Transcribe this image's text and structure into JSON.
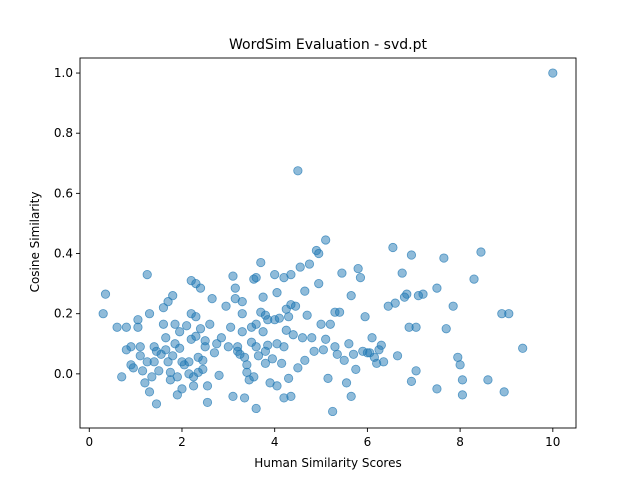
{
  "chart_data": {
    "type": "scatter",
    "title": "WordSim Evaluation - svd.pt",
    "xlabel": "Human Similarity Scores",
    "ylabel": "Cosine Similarity",
    "xlim": [
      -0.2,
      10.5
    ],
    "ylim": [
      -0.18,
      1.05
    ],
    "xticks": [
      0,
      2,
      4,
      6,
      8,
      10
    ],
    "yticks": [
      0.0,
      0.2,
      0.4,
      0.6,
      0.8,
      1.0
    ],
    "xtick_labels": [
      "0",
      "2",
      "4",
      "6",
      "8",
      "10"
    ],
    "ytick_labels": [
      "0.0",
      "0.2",
      "0.4",
      "0.6",
      "0.8",
      "1.0"
    ],
    "grid": false,
    "legend": "none",
    "marker_color": "#1f77b4",
    "marker_alpha": 0.5,
    "points": [
      [
        10.0,
        1.0
      ],
      [
        4.5,
        0.675
      ],
      [
        0.35,
        0.265
      ],
      [
        0.3,
        0.2
      ],
      [
        0.6,
        0.155
      ],
      [
        0.7,
        -0.01
      ],
      [
        0.8,
        0.08
      ],
      [
        0.8,
        0.155
      ],
      [
        0.9,
        0.09
      ],
      [
        0.9,
        0.03
      ],
      [
        0.95,
        0.02
      ],
      [
        1.05,
        0.155
      ],
      [
        1.05,
        0.18
      ],
      [
        1.1,
        0.06
      ],
      [
        1.1,
        0.09
      ],
      [
        1.15,
        0.01
      ],
      [
        1.2,
        -0.03
      ],
      [
        1.25,
        0.33
      ],
      [
        1.25,
        0.04
      ],
      [
        1.3,
        0.2
      ],
      [
        1.3,
        -0.06
      ],
      [
        1.35,
        -0.01
      ],
      [
        1.4,
        0.04
      ],
      [
        1.4,
        0.09
      ],
      [
        1.45,
        0.075
      ],
      [
        1.45,
        -0.1
      ],
      [
        1.5,
        0.01
      ],
      [
        1.55,
        0.065
      ],
      [
        1.6,
        0.165
      ],
      [
        1.6,
        0.22
      ],
      [
        1.65,
        0.12
      ],
      [
        1.65,
        0.08
      ],
      [
        1.7,
        0.24
      ],
      [
        1.7,
        0.04
      ],
      [
        1.75,
        0.005
      ],
      [
        1.75,
        -0.02
      ],
      [
        1.8,
        0.26
      ],
      [
        1.8,
        0.06
      ],
      [
        1.85,
        0.165
      ],
      [
        1.85,
        0.1
      ],
      [
        1.9,
        -0.07
      ],
      [
        1.9,
        -0.01
      ],
      [
        1.95,
        0.14
      ],
      [
        1.95,
        0.085
      ],
      [
        2.0,
        0.04
      ],
      [
        2.0,
        -0.05
      ],
      [
        2.05,
        0.03
      ],
      [
        2.1,
        0.16
      ],
      [
        2.15,
        0.04
      ],
      [
        2.15,
        0.0
      ],
      [
        2.2,
        0.31
      ],
      [
        2.2,
        0.2
      ],
      [
        2.2,
        0.115
      ],
      [
        2.25,
        -0.04
      ],
      [
        2.25,
        -0.01
      ],
      [
        2.3,
        0.3
      ],
      [
        2.3,
        0.19
      ],
      [
        2.3,
        0.125
      ],
      [
        2.35,
        0.055
      ],
      [
        2.35,
        0.005
      ],
      [
        2.4,
        0.285
      ],
      [
        2.4,
        0.15
      ],
      [
        2.45,
        0.045
      ],
      [
        2.45,
        0.015
      ],
      [
        2.5,
        0.11
      ],
      [
        2.5,
        0.09
      ],
      [
        2.55,
        -0.04
      ],
      [
        2.55,
        -0.095
      ],
      [
        2.6,
        0.165
      ],
      [
        2.65,
        0.25
      ],
      [
        2.7,
        0.07
      ],
      [
        2.75,
        0.1
      ],
      [
        2.8,
        -0.005
      ],
      [
        2.85,
        0.12
      ],
      [
        2.95,
        0.225
      ],
      [
        3.0,
        0.09
      ],
      [
        3.05,
        0.155
      ],
      [
        3.1,
        0.325
      ],
      [
        3.1,
        -0.075
      ],
      [
        3.15,
        0.285
      ],
      [
        3.15,
        0.25
      ],
      [
        3.2,
        0.075
      ],
      [
        3.2,
        0.09
      ],
      [
        3.25,
        0.065
      ],
      [
        3.3,
        0.2
      ],
      [
        3.3,
        0.24
      ],
      [
        3.3,
        0.14
      ],
      [
        3.35,
        -0.08
      ],
      [
        3.35,
        0.055
      ],
      [
        3.4,
        0.03
      ],
      [
        3.4,
        0.005
      ],
      [
        3.45,
        -0.02
      ],
      [
        3.5,
        0.155
      ],
      [
        3.5,
        0.105
      ],
      [
        3.55,
        0.315
      ],
      [
        3.55,
        -0.01
      ],
      [
        3.6,
        0.32
      ],
      [
        3.6,
        0.165
      ],
      [
        3.6,
        0.09
      ],
      [
        3.6,
        -0.115
      ],
      [
        3.65,
        0.06
      ],
      [
        3.7,
        0.37
      ],
      [
        3.7,
        0.205
      ],
      [
        3.75,
        0.255
      ],
      [
        3.75,
        0.14
      ],
      [
        3.8,
        0.195
      ],
      [
        3.8,
        0.075
      ],
      [
        3.8,
        0.035
      ],
      [
        3.85,
        0.18
      ],
      [
        3.85,
        0.095
      ],
      [
        3.9,
        -0.03
      ],
      [
        3.95,
        0.05
      ],
      [
        4.0,
        0.33
      ],
      [
        4.0,
        0.18
      ],
      [
        4.05,
        0.27
      ],
      [
        4.05,
        0.1
      ],
      [
        4.05,
        -0.04
      ],
      [
        4.1,
        0.185
      ],
      [
        4.15,
        0.035
      ],
      [
        4.2,
        0.32
      ],
      [
        4.2,
        0.09
      ],
      [
        4.2,
        -0.08
      ],
      [
        4.25,
        0.215
      ],
      [
        4.25,
        0.145
      ],
      [
        4.3,
        0.19
      ],
      [
        4.3,
        -0.015
      ],
      [
        4.35,
        0.33
      ],
      [
        4.35,
        0.23
      ],
      [
        4.35,
        -0.075
      ],
      [
        4.4,
        0.13
      ],
      [
        4.45,
        0.225
      ],
      [
        4.5,
        0.02
      ],
      [
        4.55,
        0.355
      ],
      [
        4.6,
        0.12
      ],
      [
        4.65,
        0.275
      ],
      [
        4.65,
        0.045
      ],
      [
        4.7,
        0.195
      ],
      [
        4.75,
        0.365
      ],
      [
        4.8,
        0.12
      ],
      [
        4.85,
        0.075
      ],
      [
        4.9,
        0.41
      ],
      [
        4.95,
        0.4
      ],
      [
        4.95,
        0.3
      ],
      [
        5.0,
        0.165
      ],
      [
        5.05,
        0.08
      ],
      [
        5.1,
        0.445
      ],
      [
        5.1,
        0.115
      ],
      [
        5.15,
        -0.015
      ],
      [
        5.2,
        0.165
      ],
      [
        5.25,
        -0.125
      ],
      [
        5.3,
        0.205
      ],
      [
        5.3,
        0.09
      ],
      [
        5.35,
        0.065
      ],
      [
        5.4,
        0.205
      ],
      [
        5.45,
        0.335
      ],
      [
        5.5,
        0.045
      ],
      [
        5.55,
        -0.03
      ],
      [
        5.6,
        0.1
      ],
      [
        5.65,
        -0.075
      ],
      [
        5.65,
        0.26
      ],
      [
        5.7,
        0.065
      ],
      [
        5.75,
        0.015
      ],
      [
        5.8,
        0.35
      ],
      [
        5.85,
        0.32
      ],
      [
        5.9,
        0.075
      ],
      [
        5.95,
        0.19
      ],
      [
        6.0,
        0.07
      ],
      [
        6.05,
        0.07
      ],
      [
        6.1,
        0.12
      ],
      [
        6.15,
        0.055
      ],
      [
        6.2,
        0.035
      ],
      [
        6.25,
        0.08
      ],
      [
        6.3,
        0.095
      ],
      [
        6.35,
        0.04
      ],
      [
        6.45,
        0.225
      ],
      [
        6.55,
        0.42
      ],
      [
        6.6,
        0.235
      ],
      [
        6.65,
        0.06
      ],
      [
        6.75,
        0.335
      ],
      [
        6.8,
        0.255
      ],
      [
        6.85,
        0.265
      ],
      [
        6.9,
        0.155
      ],
      [
        6.95,
        0.395
      ],
      [
        6.95,
        -0.025
      ],
      [
        7.05,
        0.155
      ],
      [
        7.05,
        0.01
      ],
      [
        7.1,
        0.26
      ],
      [
        7.2,
        0.265
      ],
      [
        7.5,
        0.285
      ],
      [
        7.5,
        -0.05
      ],
      [
        7.65,
        0.385
      ],
      [
        7.7,
        0.15
      ],
      [
        7.85,
        0.225
      ],
      [
        7.95,
        0.055
      ],
      [
        8.0,
        0.03
      ],
      [
        8.05,
        -0.07
      ],
      [
        8.05,
        -0.02
      ],
      [
        8.3,
        0.315
      ],
      [
        8.45,
        0.405
      ],
      [
        8.6,
        -0.02
      ],
      [
        8.9,
        0.2
      ],
      [
        8.95,
        -0.06
      ],
      [
        9.05,
        0.2
      ],
      [
        9.35,
        0.085
      ]
    ]
  }
}
